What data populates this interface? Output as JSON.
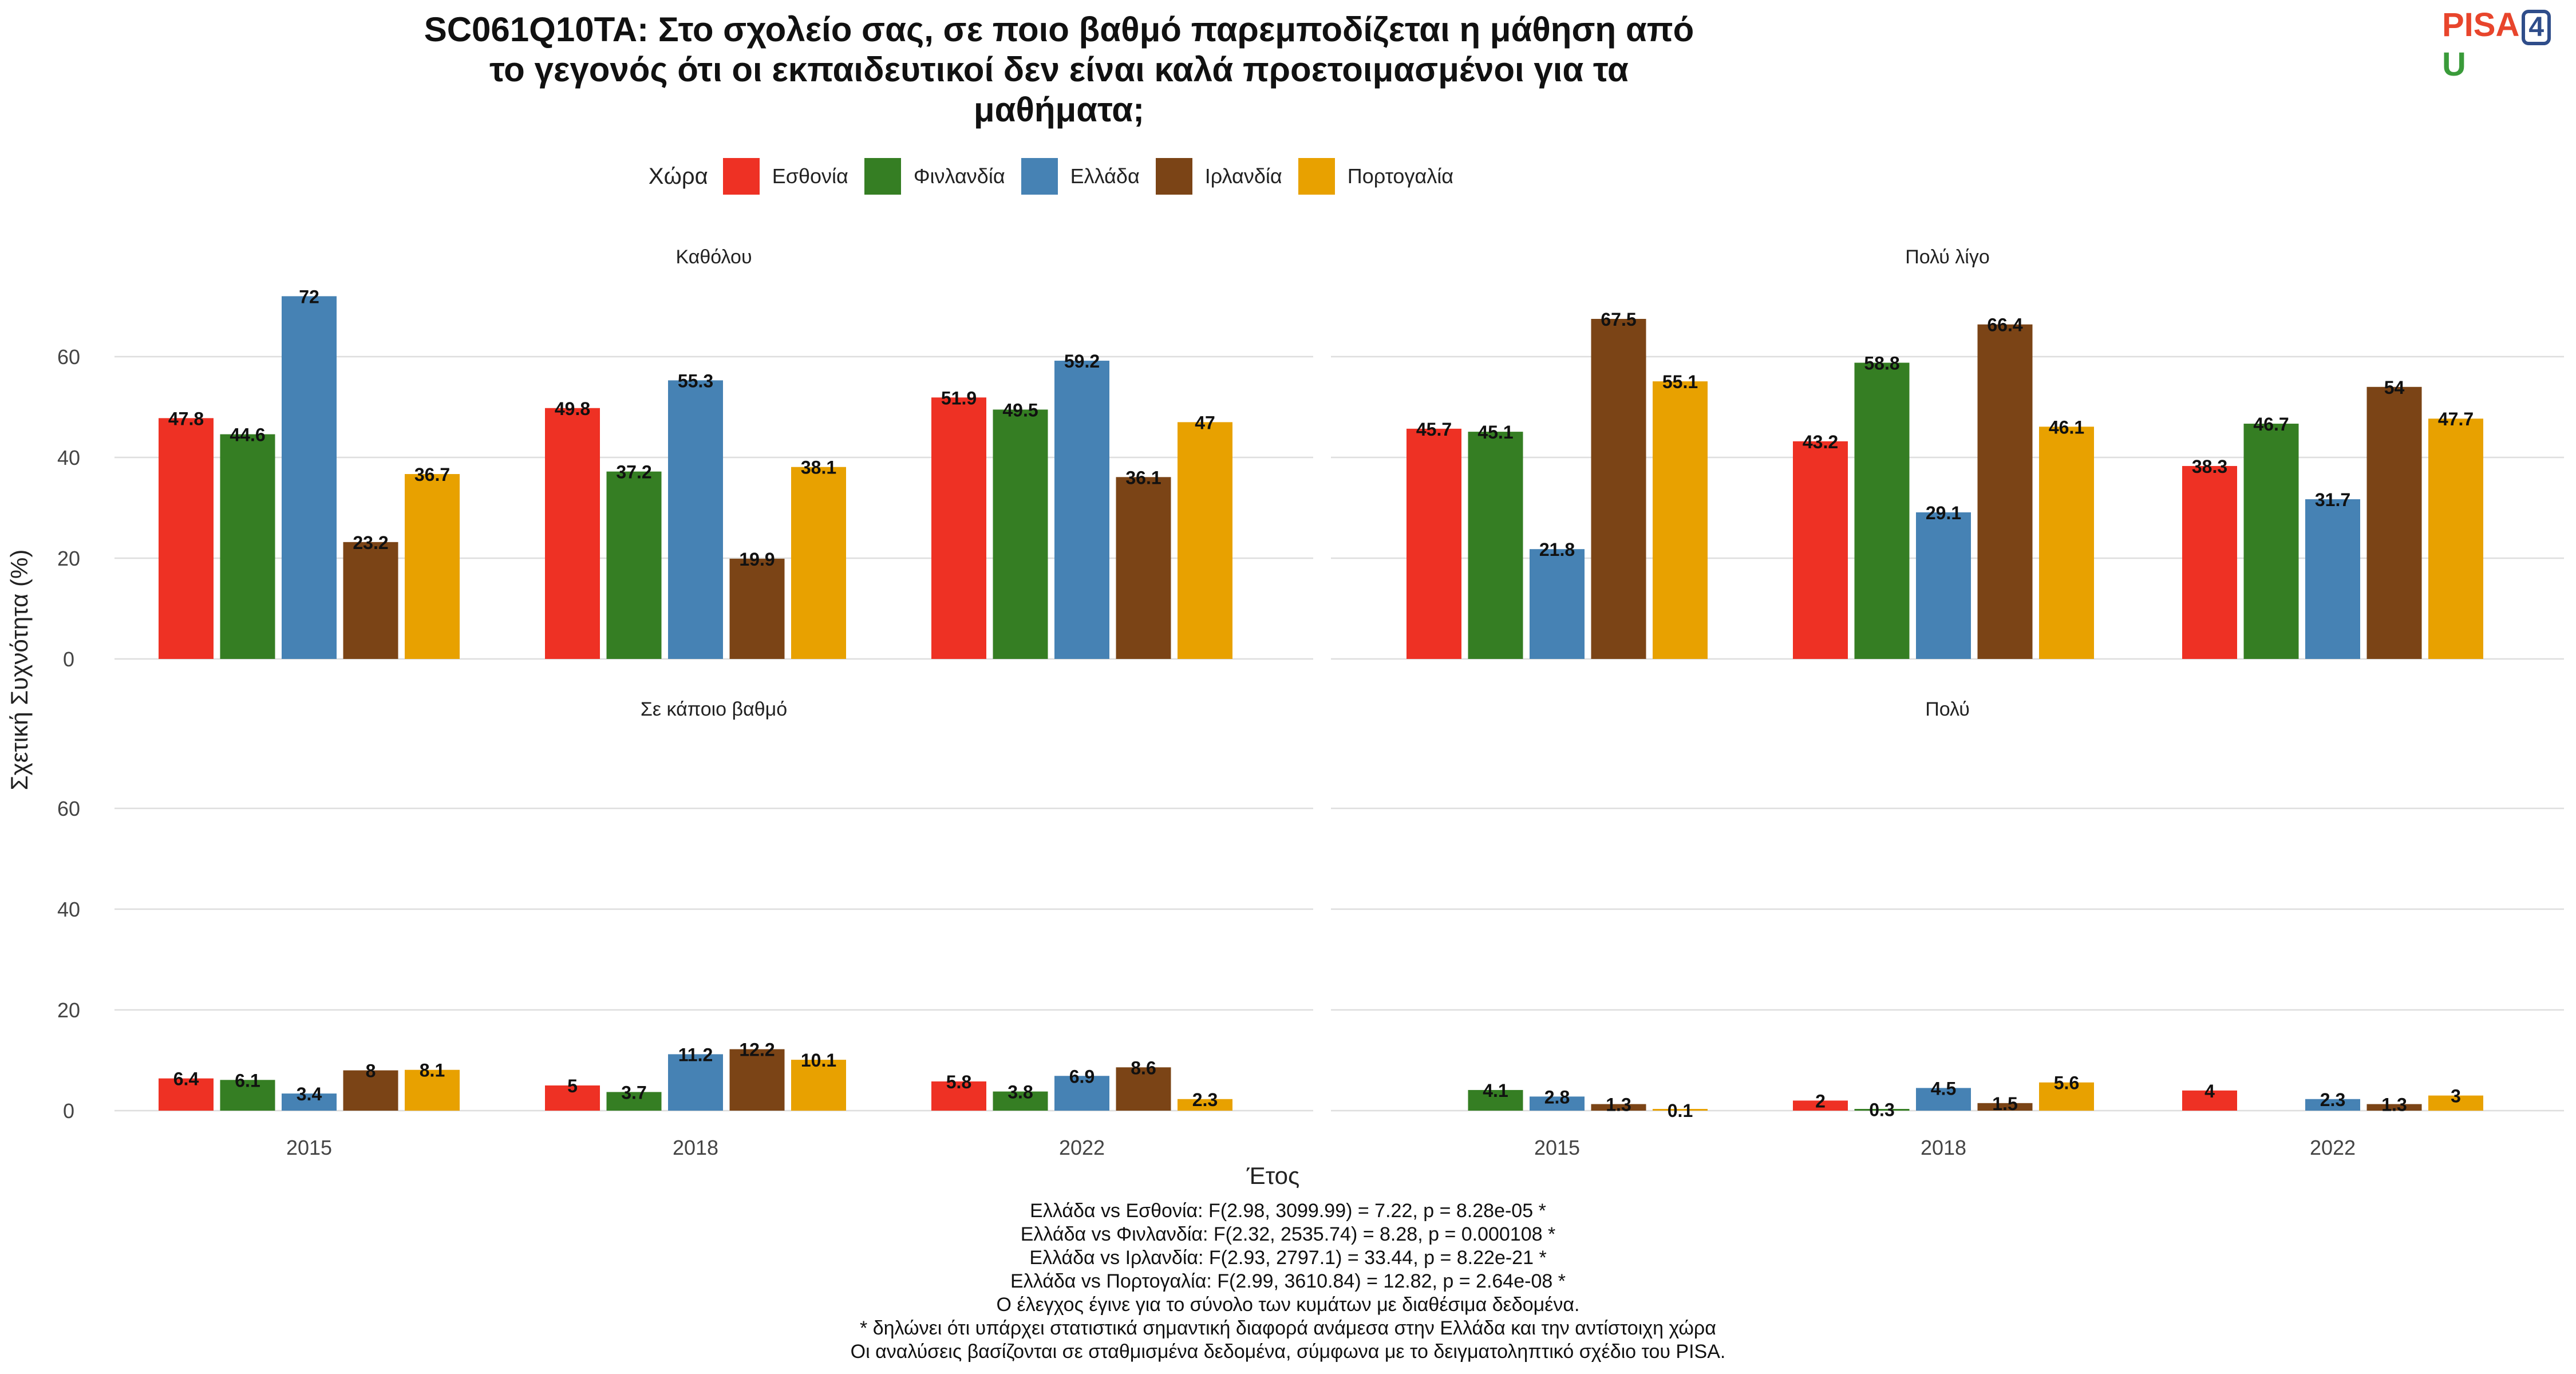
{
  "title_lines": [
    "SC061Q10TA: Στο σχολείο σας, σε ποιο βαθμό παρεμποδίζεται η μάθηση από",
    "το γεγονός ότι οι εκπαιδευτικοί δεν είναι καλά προετοιμασμένοι για τα",
    "μαθήματα;"
  ],
  "logo": {
    "text_a": "PISA",
    "text_b": "4",
    "text_c": "U"
  },
  "legend": {
    "title": "Χώρα",
    "items": [
      {
        "label": "Εσθονία",
        "color": "#ee3124"
      },
      {
        "label": "Φινλανδία",
        "color": "#357e23"
      },
      {
        "label": "Ελλάδα",
        "color": "#4682b4"
      },
      {
        "label": "Ιρλανδία",
        "color": "#7b4416"
      },
      {
        "label": "Πορτογαλία",
        "color": "#e8a100"
      }
    ]
  },
  "footnotes": [
    "Ελλάδα vs Εσθονία: F(2.98, 3099.99) = 7.22, p = 8.28e-05 *",
    "Ελλάδα vs Φινλανδία: F(2.32, 2535.74) = 8.28, p = 0.000108 *",
    "Ελλάδα vs Ιρλανδία: F(2.93, 2797.1) = 33.44, p = 8.22e-21 *",
    "Ελλάδα vs Πορτογαλία: F(2.99, 3610.84) = 12.82, p = 2.64e-08 *",
    "Ο έλεγχος έγινε για το σύνολο των κυμάτων με διαθέσιμα δεδομένα.",
    "* δηλώνει ότι υπάρχει στατιστικά σημαντική διαφορά ανάμεσα στην Ελλάδα και την αντίστοιχη χώρα",
    "Οι αναλύσεις βασίζονται σε σταθμισμένα δεδομένα, σύμφωνα με το δειγματοληπτικό σχέδιο του PISA."
  ],
  "chart_data": {
    "type": "bar",
    "xlabel": "Έτος",
    "ylabel": "Σχετική Συχνότητα (%)",
    "categories": [
      "2015",
      "2018",
      "2022"
    ],
    "yticks": [
      0,
      20,
      40,
      60
    ],
    "ylim": [
      0,
      75
    ],
    "grid": true,
    "legend_position": "top",
    "series_names": [
      "Εσθονία",
      "Φινλανδία",
      "Ελλάδα",
      "Ιρλανδία",
      "Πορτογαλία"
    ],
    "facets": [
      {
        "label": "Καθόλου",
        "values": [
          [
            47.8,
            44.6,
            72,
            23.2,
            36.7
          ],
          [
            49.8,
            37.2,
            55.3,
            19.9,
            38.1
          ],
          [
            51.9,
            49.5,
            59.2,
            36.1,
            47
          ]
        ]
      },
      {
        "label": "Πολύ λίγο",
        "values": [
          [
            45.7,
            45.1,
            21.8,
            67.5,
            55.1
          ],
          [
            43.2,
            58.8,
            29.1,
            66.4,
            46.1
          ],
          [
            38.3,
            46.7,
            31.7,
            54,
            47.7
          ]
        ]
      },
      {
        "label": "Σε κάποιο βαθμό",
        "values": [
          [
            6.4,
            6.1,
            3.4,
            8,
            8.1
          ],
          [
            5,
            3.7,
            11.2,
            12.2,
            10.1
          ],
          [
            5.8,
            3.8,
            6.9,
            8.6,
            2.3
          ]
        ]
      },
      {
        "label": "Πολύ",
        "values": [
          [
            null,
            4.1,
            2.8,
            1.3,
            0.1
          ],
          [
            2,
            0.3,
            4.5,
            1.5,
            5.6
          ],
          [
            4,
            null,
            2.3,
            1.3,
            3
          ]
        ]
      }
    ]
  }
}
